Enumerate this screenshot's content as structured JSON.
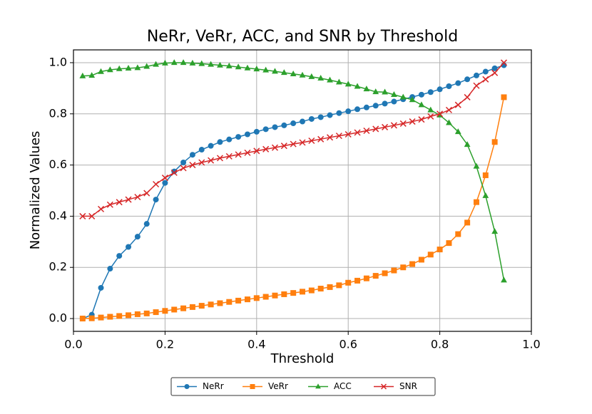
{
  "chart_data": {
    "type": "line",
    "title": "NeRr, VeRr, ACC, and SNR by Threshold",
    "xlabel": "Threshold",
    "ylabel": "Normalized Values",
    "x": [
      0.02,
      0.04,
      0.06,
      0.08,
      0.1,
      0.12,
      0.14,
      0.16,
      0.18,
      0.2,
      0.22,
      0.24,
      0.26,
      0.28,
      0.3,
      0.32,
      0.34,
      0.36,
      0.38,
      0.4,
      0.42,
      0.44,
      0.46,
      0.48,
      0.5,
      0.52,
      0.54,
      0.56,
      0.58,
      0.6,
      0.62,
      0.64,
      0.66,
      0.68,
      0.7,
      0.72,
      0.74,
      0.76,
      0.78,
      0.8,
      0.82,
      0.84,
      0.86,
      0.88,
      0.9,
      0.92,
      0.94
    ],
    "series": [
      {
        "name": "NeRr",
        "color": "#1f77b4",
        "marker": "circle",
        "values": [
          0.0,
          0.015,
          0.12,
          0.195,
          0.245,
          0.28,
          0.32,
          0.37,
          0.465,
          0.53,
          0.575,
          0.61,
          0.64,
          0.66,
          0.675,
          0.69,
          0.7,
          0.71,
          0.72,
          0.73,
          0.74,
          0.748,
          0.755,
          0.763,
          0.77,
          0.78,
          0.787,
          0.795,
          0.803,
          0.81,
          0.818,
          0.825,
          0.832,
          0.84,
          0.848,
          0.857,
          0.866,
          0.875,
          0.885,
          0.896,
          0.908,
          0.92,
          0.935,
          0.95,
          0.965,
          0.978,
          0.99
        ]
      },
      {
        "name": "VeRr",
        "color": "#ff7f0e",
        "marker": "square",
        "values": [
          0.0,
          0.001,
          0.004,
          0.007,
          0.01,
          0.013,
          0.017,
          0.02,
          0.025,
          0.03,
          0.035,
          0.04,
          0.045,
          0.05,
          0.055,
          0.06,
          0.065,
          0.07,
          0.075,
          0.08,
          0.085,
          0.09,
          0.095,
          0.1,
          0.105,
          0.11,
          0.117,
          0.123,
          0.13,
          0.14,
          0.148,
          0.157,
          0.167,
          0.177,
          0.188,
          0.2,
          0.213,
          0.23,
          0.25,
          0.27,
          0.295,
          0.33,
          0.375,
          0.455,
          0.56,
          0.69,
          0.865
        ]
      },
      {
        "name": "ACC",
        "color": "#2ca02c",
        "marker": "triangle",
        "values": [
          0.948,
          0.95,
          0.965,
          0.972,
          0.976,
          0.978,
          0.98,
          0.985,
          0.993,
          0.998,
          1.0,
          1.0,
          0.998,
          0.996,
          0.993,
          0.99,
          0.987,
          0.983,
          0.979,
          0.975,
          0.971,
          0.966,
          0.961,
          0.956,
          0.951,
          0.945,
          0.939,
          0.932,
          0.924,
          0.916,
          0.907,
          0.897,
          0.886,
          0.885,
          0.875,
          0.865,
          0.855,
          0.835,
          0.815,
          0.795,
          0.765,
          0.73,
          0.68,
          0.595,
          0.48,
          0.34,
          0.15
        ]
      },
      {
        "name": "SNR",
        "color": "#d62728",
        "marker": "x",
        "values": [
          0.4,
          0.4,
          0.428,
          0.445,
          0.455,
          0.465,
          0.475,
          0.49,
          0.525,
          0.55,
          0.57,
          0.588,
          0.6,
          0.61,
          0.618,
          0.627,
          0.634,
          0.641,
          0.648,
          0.655,
          0.662,
          0.668,
          0.675,
          0.682,
          0.688,
          0.695,
          0.701,
          0.708,
          0.714,
          0.72,
          0.727,
          0.734,
          0.741,
          0.748,
          0.755,
          0.762,
          0.77,
          0.778,
          0.79,
          0.8,
          0.815,
          0.835,
          0.865,
          0.91,
          0.935,
          0.96,
          1.0
        ]
      }
    ],
    "xlim": [
      0,
      1
    ],
    "ylim": [
      -0.05,
      1.05
    ],
    "xticks": [
      {
        "value": 0,
        "label": "0.0"
      },
      {
        "value": 0.2,
        "label": "0.2"
      },
      {
        "value": 0.4,
        "label": "0.4"
      },
      {
        "value": 0.6,
        "label": "0.6"
      },
      {
        "value": 0.8,
        "label": "0.8"
      },
      {
        "value": 1,
        "label": "1.0"
      }
    ],
    "yticks": [
      {
        "value": 0,
        "label": "0.0"
      },
      {
        "value": 0.2,
        "label": "0.2"
      },
      {
        "value": 0.4,
        "label": "0.4"
      },
      {
        "value": 0.6,
        "label": "0.6"
      },
      {
        "value": 0.8,
        "label": "0.8"
      },
      {
        "value": 1,
        "label": "1.0"
      }
    ],
    "grid": true,
    "legend": "bottom"
  }
}
